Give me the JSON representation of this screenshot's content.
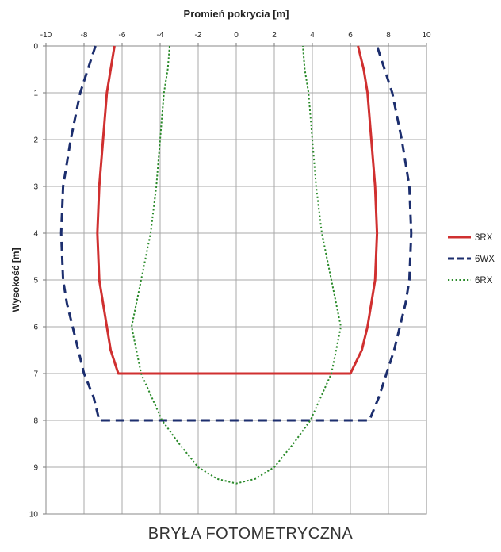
{
  "chart_data": {
    "type": "line",
    "title": "",
    "xlabel": "Promień pokrycia [m]",
    "ylabel": "Wysokość [m]",
    "xlim": [
      -10,
      10
    ],
    "ylim": [
      0,
      10
    ],
    "y_inverted": true,
    "x_axis_position": "top",
    "x_ticks": [
      "-10",
      "-8",
      "-6",
      "-4",
      "-2",
      "0",
      "2",
      "4",
      "6",
      "8",
      "10"
    ],
    "y_ticks": [
      "0",
      "1",
      "2",
      "3",
      "4",
      "5",
      "6",
      "7",
      "8",
      "9",
      "10"
    ],
    "grid": true,
    "legend_position": "right",
    "series": [
      {
        "name": "3RX",
        "color": "#d03030",
        "style": "solid",
        "points": [
          [
            -6.4,
            0
          ],
          [
            -6.6,
            0.5
          ],
          [
            -6.8,
            1
          ],
          [
            -7.0,
            2
          ],
          [
            -7.2,
            3
          ],
          [
            -7.3,
            4
          ],
          [
            -7.2,
            5
          ],
          [
            -7.0,
            5.5
          ],
          [
            -6.8,
            6
          ],
          [
            -6.6,
            6.5
          ],
          [
            -6.2,
            7
          ],
          [
            0,
            7
          ],
          [
            6.0,
            7
          ],
          [
            6.6,
            6.5
          ],
          [
            6.9,
            6
          ],
          [
            7.1,
            5.5
          ],
          [
            7.3,
            5
          ],
          [
            7.4,
            4
          ],
          [
            7.3,
            3
          ],
          [
            7.1,
            2
          ],
          [
            6.9,
            1
          ],
          [
            6.7,
            0.5
          ],
          [
            6.4,
            0
          ]
        ]
      },
      {
        "name": "6WX",
        "color": "#1c2e6e",
        "style": "dashed",
        "points": [
          [
            -7.4,
            0
          ],
          [
            -7.8,
            0.5
          ],
          [
            -8.2,
            1
          ],
          [
            -8.7,
            2
          ],
          [
            -9.1,
            3
          ],
          [
            -9.2,
            4
          ],
          [
            -9.1,
            5
          ],
          [
            -8.9,
            5.5
          ],
          [
            -8.6,
            6
          ],
          [
            -8.3,
            6.5
          ],
          [
            -8.0,
            7
          ],
          [
            -7.5,
            7.5
          ],
          [
            -7.2,
            8
          ],
          [
            0,
            8
          ],
          [
            7.0,
            8
          ],
          [
            7.5,
            7.5
          ],
          [
            7.9,
            7
          ],
          [
            8.3,
            6.5
          ],
          [
            8.6,
            6
          ],
          [
            8.9,
            5.5
          ],
          [
            9.1,
            5
          ],
          [
            9.2,
            4
          ],
          [
            9.1,
            3
          ],
          [
            8.7,
            2
          ],
          [
            8.2,
            1
          ],
          [
            7.8,
            0.5
          ],
          [
            7.4,
            0
          ]
        ]
      },
      {
        "name": "6RX",
        "color": "#2a8a2a",
        "style": "dotted",
        "points": [
          [
            -3.5,
            0
          ],
          [
            -3.6,
            0.5
          ],
          [
            -3.8,
            1
          ],
          [
            -4.0,
            2
          ],
          [
            -4.2,
            3
          ],
          [
            -4.5,
            4
          ],
          [
            -5.0,
            5
          ],
          [
            -5.5,
            6
          ],
          [
            -5.0,
            7
          ],
          [
            -3.9,
            8
          ],
          [
            -3.0,
            8.5
          ],
          [
            -2.0,
            9
          ],
          [
            -1.0,
            9.25
          ],
          [
            0,
            9.35
          ],
          [
            1.0,
            9.25
          ],
          [
            2.0,
            9
          ],
          [
            3.0,
            8.5
          ],
          [
            3.9,
            8
          ],
          [
            5.0,
            7
          ],
          [
            5.5,
            6
          ],
          [
            5.0,
            5
          ],
          [
            4.5,
            4
          ],
          [
            4.2,
            3
          ],
          [
            4.0,
            2
          ],
          [
            3.8,
            1
          ],
          [
            3.6,
            0.5
          ],
          [
            3.5,
            0
          ]
        ]
      }
    ]
  },
  "caption": "BRYŁA FOTOMETRYCZNA"
}
